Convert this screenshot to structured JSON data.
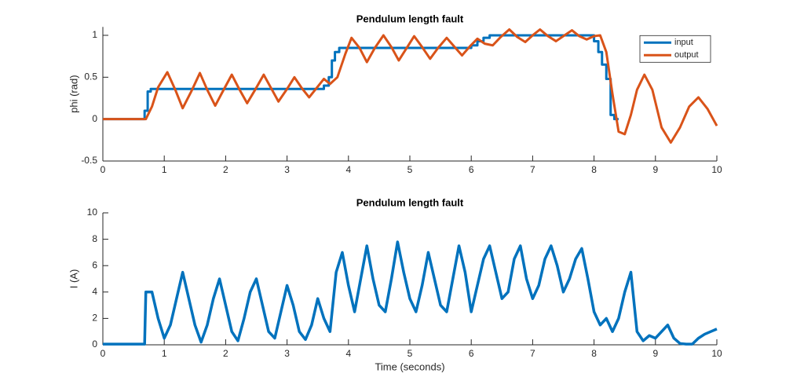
{
  "chart_data": [
    {
      "type": "line",
      "title": "Pendulum length fault",
      "ylabel": "phi (rad)",
      "xlim": [
        0,
        10
      ],
      "xticks": [
        0,
        1,
        2,
        3,
        4,
        5,
        6,
        7,
        8,
        9,
        10
      ],
      "ylim": [
        -0.5,
        1.1
      ],
      "yticks": [
        -0.5,
        0,
        0.5,
        1
      ],
      "legend": "northeast",
      "series": [
        {
          "name": "input",
          "color": "#0072bd",
          "x": [
            0,
            0.68,
            0.68,
            0.73,
            0.73,
            0.78,
            0.78,
            3.6,
            3.6,
            3.68,
            3.68,
            3.73,
            3.73,
            3.78,
            3.78,
            3.85,
            3.85,
            6.0,
            6.0,
            6.1,
            6.1,
            6.2,
            6.2,
            6.3,
            6.3,
            8.0,
            8.0,
            8.07,
            8.07,
            8.13,
            8.13,
            8.2,
            8.2,
            8.27,
            8.27,
            8.33,
            8.33,
            8.4
          ],
          "values": [
            0,
            0,
            0.1,
            0.1,
            0.33,
            0.33,
            0.36,
            0.36,
            0.4,
            0.4,
            0.5,
            0.5,
            0.7,
            0.7,
            0.8,
            0.8,
            0.85,
            0.85,
            0.88,
            0.88,
            0.93,
            0.93,
            0.97,
            0.97,
            1.0,
            1.0,
            0.93,
            0.93,
            0.8,
            0.8,
            0.65,
            0.65,
            0.48,
            0.48,
            0.05,
            0.05,
            0,
            0
          ]
        },
        {
          "name": "output",
          "color": "#d95319",
          "x": [
            0,
            0.7,
            0.8,
            0.9,
            1.05,
            1.18,
            1.3,
            1.44,
            1.58,
            1.7,
            1.83,
            1.96,
            2.1,
            2.22,
            2.35,
            2.48,
            2.62,
            2.74,
            2.86,
            3.0,
            3.12,
            3.24,
            3.36,
            3.48,
            3.6,
            3.7,
            3.82,
            3.95,
            4.05,
            4.18,
            4.3,
            4.43,
            4.57,
            4.7,
            4.82,
            4.95,
            5.07,
            5.2,
            5.33,
            5.46,
            5.6,
            5.73,
            5.85,
            5.98,
            6.1,
            6.22,
            6.35,
            6.48,
            6.62,
            6.75,
            6.88,
            7.0,
            7.12,
            7.25,
            7.38,
            7.5,
            7.64,
            7.76,
            7.88,
            8.0,
            8.1,
            8.2,
            8.3,
            8.4,
            8.5,
            8.6,
            8.7,
            8.82,
            8.95,
            9.1,
            9.25,
            9.4,
            9.55,
            9.7,
            9.85,
            10.0
          ],
          "values": [
            0,
            0,
            0.15,
            0.38,
            0.56,
            0.35,
            0.13,
            0.33,
            0.55,
            0.35,
            0.16,
            0.34,
            0.53,
            0.36,
            0.19,
            0.35,
            0.53,
            0.37,
            0.21,
            0.36,
            0.5,
            0.37,
            0.26,
            0.37,
            0.48,
            0.42,
            0.5,
            0.78,
            0.97,
            0.85,
            0.68,
            0.85,
            1.0,
            0.86,
            0.7,
            0.85,
            0.99,
            0.86,
            0.72,
            0.85,
            0.97,
            0.86,
            0.76,
            0.87,
            0.96,
            0.9,
            0.88,
            0.98,
            1.07,
            0.98,
            0.92,
            1.0,
            1.07,
            0.99,
            0.93,
            0.99,
            1.06,
            0.99,
            0.95,
            0.99,
            1.0,
            0.8,
            0.3,
            -0.15,
            -0.18,
            0.05,
            0.35,
            0.53,
            0.35,
            -0.1,
            -0.28,
            -0.1,
            0.15,
            0.26,
            0.12,
            -0.08
          ]
        }
      ]
    },
    {
      "type": "line",
      "title": "Pendulum length fault",
      "ylabel": "I (A)",
      "xlabel": "Time (seconds)",
      "xlim": [
        0,
        10
      ],
      "xticks": [
        0,
        1,
        2,
        3,
        4,
        5,
        6,
        7,
        8,
        9,
        10
      ],
      "ylim": [
        0,
        10
      ],
      "yticks": [
        0,
        2,
        4,
        6,
        8,
        10
      ],
      "color": "#0072bd",
      "x": [
        0,
        0.68,
        0.7,
        0.8,
        0.9,
        1.0,
        1.1,
        1.2,
        1.3,
        1.4,
        1.5,
        1.6,
        1.7,
        1.8,
        1.9,
        2.0,
        2.1,
        2.2,
        2.3,
        2.4,
        2.5,
        2.6,
        2.7,
        2.8,
        2.9,
        3.0,
        3.1,
        3.2,
        3.3,
        3.4,
        3.5,
        3.6,
        3.7,
        3.8,
        3.9,
        4.0,
        4.1,
        4.2,
        4.3,
        4.4,
        4.5,
        4.6,
        4.7,
        4.8,
        4.9,
        5.0,
        5.1,
        5.2,
        5.3,
        5.4,
        5.5,
        5.6,
        5.7,
        5.8,
        5.9,
        6.0,
        6.1,
        6.2,
        6.3,
        6.4,
        6.5,
        6.6,
        6.7,
        6.8,
        6.9,
        7.0,
        7.1,
        7.2,
        7.3,
        7.4,
        7.5,
        7.6,
        7.7,
        7.8,
        7.9,
        8.0,
        8.1,
        8.2,
        8.3,
        8.4,
        8.5,
        8.6,
        8.7,
        8.8,
        8.9,
        9.0,
        9.1,
        9.2,
        9.3,
        9.4,
        9.5,
        9.6,
        9.7,
        9.8,
        9.9,
        10.0
      ],
      "values": [
        0.05,
        0.05,
        4,
        4,
        2,
        0.5,
        1.5,
        3.5,
        5.5,
        3.5,
        1.5,
        0.2,
        1.5,
        3.5,
        5,
        3,
        1,
        0.3,
        2,
        4,
        5,
        3,
        1,
        0.5,
        2.5,
        4.5,
        3,
        1,
        0.4,
        1.5,
        3.5,
        2,
        1,
        5.5,
        7,
        4.5,
        2.5,
        5,
        7.5,
        5,
        3,
        2.5,
        5,
        7.8,
        5.5,
        3.5,
        2.5,
        4.5,
        7,
        5,
        3,
        2.5,
        5,
        7.5,
        5.5,
        2.5,
        4.5,
        6.5,
        7.5,
        5.5,
        3.5,
        4,
        6.5,
        7.5,
        5,
        3.5,
        4.5,
        6.5,
        7.5,
        6,
        4,
        5,
        6.5,
        7.3,
        5,
        2.5,
        1.5,
        2,
        1,
        2,
        4,
        5.5,
        1,
        0.3,
        0.7,
        0.5,
        1,
        1.5,
        0.5,
        0.1,
        0.05,
        0.05,
        0.5,
        0.8,
        1,
        1.2
      ]
    }
  ]
}
